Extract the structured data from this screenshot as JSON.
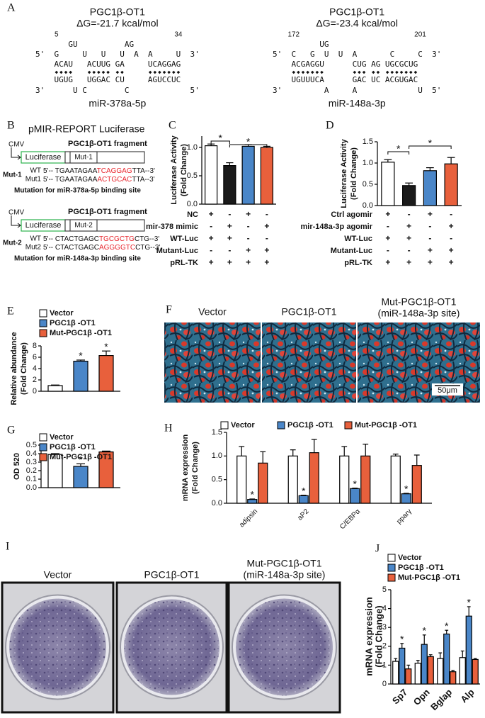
{
  "panel_labels": [
    "A",
    "B",
    "C",
    "D",
    "E",
    "F",
    "G",
    "H",
    "I",
    "J"
  ],
  "rna": [
    {
      "title": "PGC1β-OT1",
      "energy": "ΔG=-21.7 kcal/mol",
      "start_num": "5",
      "end_num": "34",
      "loop": "       GU          AG",
      "top": "5'  G     U   U   U  A  A     U  3'",
      "pair_top": "    ACAU   ACUUG GA     ",
      "seed_top": "UCAGGAG",
      "pair_bottom": "    UGUG   UGGAC CU     ",
      "seed_bottom": "AGUCCUC",
      "bottom": "3'      U C        C             5'",
      "mirna": "miR-378a-5p"
    },
    {
      "title": "PGC1β-OT1",
      "energy": "ΔG=-23.4 kcal/mol",
      "start_num": "172",
      "end_num": "201",
      "loop": "          UG",
      "top": "5'  C   G  U  U  A       C     C  3'",
      "pair_top": "    ACGAGGU      CUG AG ",
      "seed_top": "UGCGCUG",
      "pair_bottom": "    UGUUUCA      GAC UC ",
      "seed_bottom": "ACGUGAC",
      "bottom": "3'         A     A             U  5'",
      "mirna": "miR-148a-3p"
    }
  ],
  "construct": {
    "title": "pMIR-REPORT Luciferase",
    "items": [
      {
        "promoter": "CMV",
        "reporter": "Luciferase",
        "fragment": "PGC1β-OT1 fragment",
        "mut_box": "Mut-1",
        "mut_label": "Mut-1",
        "wt_name": "WT",
        "wt": [
          "5'-- TGAATAGAA",
          "TCAGGAG",
          "TTA--3'"
        ],
        "mut_name": "Mut1",
        "mut": [
          "5'-- TGAATAGAA",
          "ACTGCAC",
          "TTA--3'"
        ],
        "note": "Mutation for miR-378a-5p binding site"
      },
      {
        "promoter": "CMV",
        "reporter": "Luciferase",
        "fragment": "PGC1β-OT1 fragment",
        "mut_box": "Mut-2",
        "mut_label": "Mut-2",
        "wt_name": "WT",
        "wt": [
          "5'-- CTACTGAGC",
          "TGCGCTG",
          "CTG--3'"
        ],
        "mut_name": "Mut2",
        "mut": [
          "5'-- CTACTGAGC",
          "AGGGGTC",
          "CTG--3'"
        ],
        "note": "Mutation for miR-148a-3p binding site"
      }
    ]
  },
  "fig_f": {
    "labels": [
      [
        "Vector"
      ],
      [
        "PGC1β-OT1"
      ],
      [
        "Mut-PGC1β-OT1",
        "(miR-148a-3p site)"
      ]
    ],
    "scale": "50μm"
  },
  "fig_i": {
    "labels": [
      [
        "Vector"
      ],
      [
        "PGC1β-OT1"
      ],
      [
        "Mut-PGC1β-OT1",
        "(miR-148a-3p site)"
      ]
    ]
  },
  "chart_data": [
    {
      "type": "bar",
      "ylabel": [
        "Luciferase Activity",
        "(Fold Change)"
      ],
      "values": [
        1.03,
        0.68,
        1.02,
        1.0
      ],
      "errors": [
        0.03,
        0.05,
        0.03,
        0.02
      ],
      "colors": [
        "#ffffff",
        "#1a1a1a",
        "#4a86c8",
        "#e8603c"
      ],
      "ylim": [
        0,
        1.2
      ],
      "yticks": [
        {
          "value": 0,
          "label": "0.0"
        },
        0.5,
        {
          "value": 1,
          "label": "1.0"
        }
      ],
      "annotations": [
        "*",
        "*"
      ],
      "conditions": [
        {
          "label": "NC",
          "signs": [
            "+",
            "-",
            "+",
            "-"
          ]
        },
        {
          "label": "mir-378 mimic",
          "signs": [
            "-",
            "+",
            "-",
            "+"
          ]
        },
        {
          "label": "WT-Luc",
          "signs": [
            "+",
            "+",
            "-",
            "-"
          ]
        },
        {
          "label": "Mutant-Luc",
          "signs": [
            "-",
            "-",
            "+",
            "+"
          ]
        },
        {
          "label": "pRL-TK",
          "signs": [
            "+",
            "+",
            "+",
            "+"
          ]
        }
      ]
    },
    {
      "type": "bar",
      "ylabel": [
        "Luciferase Activity",
        "(Fold Change)"
      ],
      "values": [
        1.02,
        0.47,
        0.82,
        0.98
      ],
      "errors": [
        0.06,
        0.06,
        0.07,
        0.15
      ],
      "colors": [
        "#ffffff",
        "#1a1a1a",
        "#4a86c8",
        "#e8603c"
      ],
      "ylim": [
        0,
        1.5
      ],
      "yticks": [
        {
          "value": 0,
          "label": "0.0"
        },
        0.5,
        {
          "value": 1,
          "label": "1.0"
        },
        1.5
      ],
      "annotations": [
        "*",
        "*"
      ],
      "conditions": [
        {
          "label": "Ctrl agomir",
          "signs": [
            "+",
            "-",
            "+",
            "-"
          ]
        },
        {
          "label": "mir-148a-3p agomir",
          "signs": [
            "-",
            "+",
            "-",
            "+"
          ]
        },
        {
          "label": "WT-Luc",
          "signs": [
            "+",
            "+",
            "-",
            "-"
          ]
        },
        {
          "label": "Mutant-Luc",
          "signs": [
            "-",
            "-",
            "+",
            "+"
          ]
        },
        {
          "label": "pRL-TK",
          "signs": [
            "+",
            "+",
            "+",
            "+"
          ]
        }
      ]
    },
    {
      "type": "bar",
      "ylabel": [
        "Relative abundance",
        "(Fold Change)"
      ],
      "legend": "top-left",
      "series": [
        {
          "name": "Vector",
          "color": "#ffffff",
          "values": [
            1.0
          ],
          "errors": [
            0.1
          ],
          "significance": [
            null
          ]
        },
        {
          "name": "PGC1β -OT1",
          "color": "#4a86c8",
          "values": [
            5.3
          ],
          "errors": [
            0.2
          ],
          "significance": [
            "*"
          ]
        },
        {
          "name": "Mut-PGC1β -OT1",
          "color": "#e8603c",
          "values": [
            6.3
          ],
          "errors": [
            0.8
          ],
          "significance": [
            "*"
          ]
        }
      ],
      "ylim": [
        0,
        8
      ],
      "yticks": [
        0,
        2,
        4,
        6,
        8
      ]
    },
    {
      "type": "bar",
      "ylabel": [
        "OD 520"
      ],
      "legend": "top-left",
      "series": [
        {
          "name": "Vector",
          "color": "#ffffff",
          "values": [
            0.39
          ],
          "errors": [
            0.01
          ],
          "significance": [
            null
          ]
        },
        {
          "name": "PGC1β -OT1",
          "color": "#4a86c8",
          "values": [
            0.25
          ],
          "errors": [
            0.03
          ],
          "significance": [
            "*"
          ]
        },
        {
          "name": "Mut-PGC1β -OT1",
          "color": "#e8603c",
          "values": [
            0.42
          ],
          "errors": [
            0.01
          ],
          "significance": [
            null
          ]
        }
      ],
      "ylim": [
        0,
        0.5
      ],
      "yticks": [
        {
          "value": 0,
          "label": "0.0"
        },
        0.1,
        0.2,
        0.3,
        0.4,
        0.5
      ]
    },
    {
      "type": "bar",
      "ylabel": [
        "mRNA expression",
        "(Fold Change)"
      ],
      "legend": "top",
      "categories": [
        "adipsin",
        "aP2",
        "C/EBPα",
        "pparγ"
      ],
      "series": [
        {
          "name": "Vector",
          "color": "#ffffff",
          "values": [
            1.0,
            1.0,
            1.0,
            1.0
          ],
          "errors": [
            0.2,
            0.13,
            0.2,
            0.04
          ],
          "significance": [
            null,
            null,
            null,
            null
          ]
        },
        {
          "name": "PGC1β -OT1",
          "color": "#4a86c8",
          "values": [
            0.08,
            0.16,
            0.31,
            0.2
          ],
          "errors": [
            0.01,
            0.01,
            0.01,
            0.01
          ],
          "significance": [
            "*",
            "*",
            "*",
            "*"
          ]
        },
        {
          "name": "Mut-PGC1β -OT1",
          "color": "#e8603c",
          "values": [
            0.85,
            1.07,
            1.0,
            0.8
          ],
          "errors": [
            0.24,
            0.28,
            0.25,
            0.22
          ],
          "significance": [
            null,
            null,
            null,
            null
          ]
        }
      ],
      "ylim": [
        0,
        1.5
      ],
      "yticks": [
        {
          "value": 0,
          "label": "0.0"
        },
        0.5,
        {
          "value": 1,
          "label": "1.0"
        },
        1.5
      ]
    },
    {
      "type": "bar",
      "ylabel": [
        "mRNA expression",
        "(Fold Change)"
      ],
      "legend": "top-left",
      "categories": [
        "Sp7",
        "Opn",
        "Bglap",
        "Alp"
      ],
      "series": [
        {
          "name": "Vector",
          "color": "#ffffff",
          "values": [
            1.2,
            1.1,
            1.35,
            1.4
          ],
          "errors": [
            0.15,
            0.15,
            0.3,
            0.35
          ],
          "significance": [
            null,
            null,
            null,
            null
          ]
        },
        {
          "name": "PGC1β -OT1",
          "color": "#4a86c8",
          "values": [
            1.9,
            2.1,
            2.65,
            3.6
          ],
          "errors": [
            0.25,
            0.5,
            0.2,
            0.5
          ],
          "significance": [
            "*",
            "*",
            "*",
            "*"
          ]
        },
        {
          "name": "Mut-PGC1β -OT1",
          "color": "#e8603c",
          "values": [
            0.8,
            1.45,
            0.65,
            1.3
          ],
          "errors": [
            0.2,
            0.1,
            0.07,
            0.05
          ],
          "significance": [
            null,
            null,
            null,
            null
          ]
        }
      ],
      "ylim": [
        0,
        5
      ],
      "yticks": [
        0,
        1,
        2,
        3,
        4,
        5
      ]
    }
  ]
}
